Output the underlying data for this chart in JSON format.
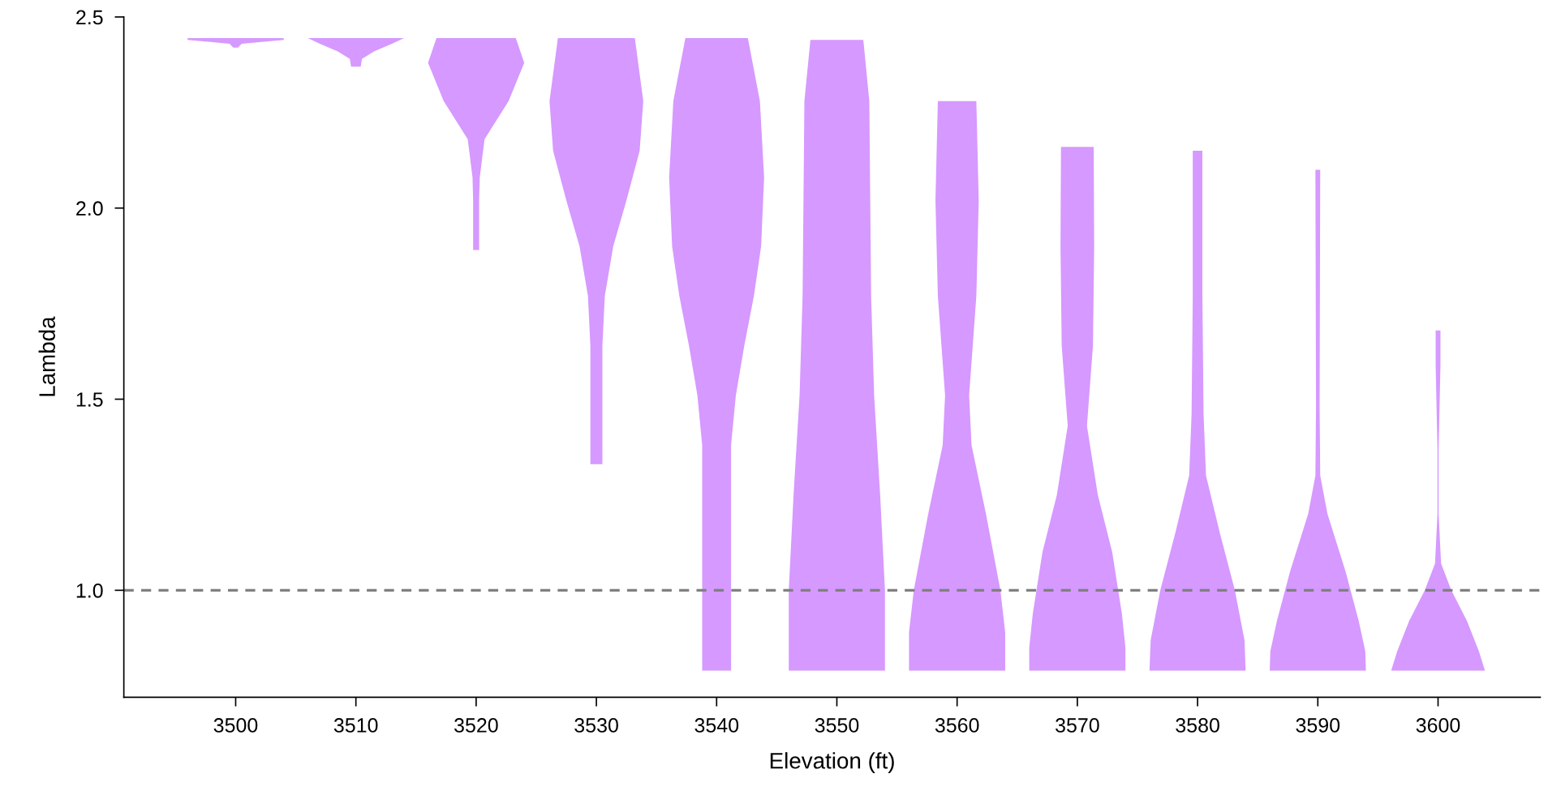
{
  "chart_data": {
    "type": "area",
    "orientation": "horizontal",
    "xlabel": "Elevation (ft)",
    "ylabel": "Lambda",
    "xlim": [
      3490.7,
      3608.5
    ],
    "ylim": [
      0.72,
      2.5
    ],
    "xticks": [
      3500,
      3510,
      3520,
      3530,
      3540,
      3550,
      3560,
      3570,
      3580,
      3590,
      3600
    ],
    "yticks": [
      {
        "value": 1.0,
        "label": "1.0"
      },
      {
        "value": 1.5,
        "label": "1.5"
      },
      {
        "value": 2.0,
        "label": "2.0"
      },
      {
        "value": 2.5,
        "label": "2.5"
      }
    ],
    "grid": false,
    "legend": false,
    "ref_lines": [
      {
        "axis": "y",
        "value": 1.0,
        "color": "#808080",
        "line_style": "dashed"
      }
    ],
    "series": [
      {
        "color": "#d699ff",
        "x": [
          2.42,
          2.43,
          2.44,
          2.445
        ],
        "lower": [
          3499.8,
          3499.5,
          3496,
          3496
        ],
        "upper": [
          3500.2,
          3500.5,
          3504,
          3504
        ],
        "values": [
          null,
          null,
          null,
          null
        ]
      },
      {
        "color": "#d699ff",
        "x": [
          2.37,
          2.39,
          2.41,
          2.43,
          2.445
        ],
        "lower": [
          3509.6,
          3509.5,
          3508.5,
          3507,
          3506
        ],
        "upper": [
          3510.4,
          3510.5,
          3511.5,
          3513,
          3514
        ],
        "values": [
          null,
          null,
          null,
          null,
          null
        ]
      },
      {
        "color": "#d699ff",
        "x": [
          1.89,
          2.02,
          2.08,
          2.18,
          2.28,
          2.38,
          2.445
        ],
        "lower": [
          3519.75,
          3519.75,
          3519.7,
          3519.3,
          3517.3,
          3516,
          3516.7
        ],
        "upper": [
          3520.25,
          3520.25,
          3520.3,
          3520.7,
          3522.7,
          3524,
          3523.3
        ],
        "values": [
          null,
          null,
          null,
          null,
          null,
          null,
          null
        ]
      },
      {
        "color": "#d699ff",
        "x": [
          1.33,
          1.64,
          1.77,
          1.9,
          2.02,
          2.15,
          2.28,
          2.445
        ],
        "lower": [
          3529.5,
          3529.5,
          3529.3,
          3528.6,
          3527.5,
          3526.4,
          3526.1,
          3526.8
        ],
        "upper": [
          3530.5,
          3530.5,
          3530.7,
          3531.4,
          3532.5,
          3533.6,
          3533.9,
          3533.2
        ],
        "values": [
          null,
          null,
          null,
          null,
          null,
          null,
          null,
          null
        ]
      },
      {
        "color": "#d699ff",
        "x": [
          0.79,
          1.38,
          1.51,
          1.64,
          1.77,
          1.9,
          2.08,
          2.28,
          2.445
        ],
        "lower": [
          3538.8,
          3538.8,
          3538.4,
          3537.7,
          3536.9,
          3536.3,
          3536.05,
          3536.4,
          3537.4
        ],
        "upper": [
          3541.2,
          3541.2,
          3541.6,
          3542.3,
          3543.1,
          3543.7,
          3543.95,
          3543.6,
          3542.6
        ],
        "values": [
          null,
          null,
          null,
          null,
          null,
          null,
          null,
          null,
          null
        ]
      },
      {
        "color": "#d699ff",
        "x": [
          0.79,
          1.0,
          1.25,
          1.51,
          1.77,
          2.28,
          2.44
        ],
        "lower": [
          3546,
          3546,
          3546.4,
          3546.9,
          3547.15,
          3547.3,
          3547.8
        ],
        "upper": [
          3554,
          3554,
          3553.6,
          3553.1,
          3552.85,
          3552.7,
          3552.2
        ],
        "values": [
          null,
          null,
          null,
          null,
          null,
          null,
          null
        ]
      },
      {
        "color": "#d699ff",
        "x": [
          0.79,
          0.89,
          1.0,
          1.2,
          1.38,
          1.51,
          1.77,
          2.02,
          2.28
        ],
        "lower": [
          3556,
          3556,
          3556.4,
          3557.6,
          3558.8,
          3559,
          3558.4,
          3558.2,
          3558.4
        ],
        "upper": [
          3564,
          3564,
          3563.6,
          3562.4,
          3561.2,
          3561,
          3561.6,
          3561.8,
          3561.6
        ],
        "values": [
          null,
          null,
          null,
          null,
          null,
          null,
          null,
          null,
          null
        ]
      },
      {
        "color": "#d699ff",
        "x": [
          0.79,
          0.85,
          0.94,
          1.1,
          1.25,
          1.43,
          1.64,
          1.9,
          2.16
        ],
        "lower": [
          3566,
          3566,
          3566.3,
          3567.1,
          3568.3,
          3569.2,
          3568.7,
          3568.6,
          3568.64
        ],
        "upper": [
          3574,
          3574,
          3573.7,
          3572.9,
          3571.7,
          3570.8,
          3571.3,
          3571.4,
          3571.36
        ],
        "values": [
          null,
          null,
          null,
          null,
          null,
          null,
          null,
          null,
          null
        ]
      },
      {
        "color": "#d699ff",
        "x": [
          0.79,
          0.87,
          1.0,
          1.15,
          1.3,
          1.46,
          1.77,
          2.15
        ],
        "lower": [
          3576,
          3576.1,
          3576.9,
          3578.15,
          3579.3,
          3579.5,
          3579.6,
          3579.6
        ],
        "upper": [
          3584,
          3583.9,
          3583.1,
          3581.85,
          3580.7,
          3580.5,
          3580.4,
          3580.4
        ],
        "values": [
          null,
          null,
          null,
          null,
          null,
          null,
          null,
          null
        ]
      },
      {
        "color": "#d699ff",
        "x": [
          0.79,
          0.84,
          0.92,
          1.05,
          1.2,
          1.3,
          1.48,
          2.1
        ],
        "lower": [
          3586,
          3586.05,
          3586.6,
          3587.7,
          3589.2,
          3589.8,
          3589.85,
          3589.8
        ],
        "upper": [
          3594,
          3593.95,
          3593.4,
          3592.3,
          3590.8,
          3590.2,
          3590.15,
          3590.2
        ],
        "values": [
          null,
          null,
          null,
          null,
          null,
          null,
          null,
          null
        ]
      },
      {
        "color": "#d699ff",
        "x": [
          0.79,
          0.84,
          0.92,
          1.0,
          1.07,
          1.2,
          1.37,
          1.59,
          1.68
        ],
        "lower": [
          3596.1,
          3596.6,
          3597.6,
          3598.9,
          3599.75,
          3599.95,
          3599.95,
          3599.8,
          3599.8
        ],
        "upper": [
          3603.9,
          3603.4,
          3602.4,
          3601.1,
          3600.25,
          3600.05,
          3600.05,
          3600.2,
          3600.2
        ],
        "values": [
          null,
          null,
          null,
          null,
          null,
          null,
          null,
          null,
          null
        ]
      }
    ]
  }
}
